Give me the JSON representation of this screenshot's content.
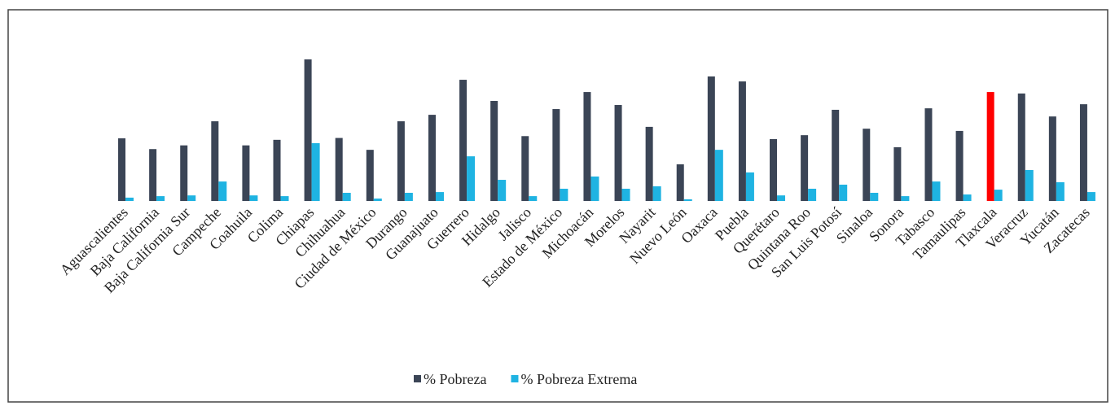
{
  "chart_data": {
    "type": "bar",
    "categories": [
      "Aguascalientes",
      "Baja California",
      "Baja California Sur",
      "Campeche",
      "Coahuila",
      "Colima",
      "Chiapas",
      "Chihuahua",
      "Ciudad de México",
      "Durango",
      "Guanajuato",
      "Guerrero",
      "Hidalgo",
      "Jalisco",
      "Estado de México",
      "Michoacán",
      "Morelos",
      "Nayarit",
      "Nuevo León",
      "Oaxaca",
      "Puebla",
      "Querétaro",
      "Quintana Roo",
      "San Luis Potosí",
      "Sinaloa",
      "Sonora",
      "Tabasco",
      "Tamaulipas",
      "Tlaxcala",
      "Veracruz",
      "Yucatán",
      "Zacatecas"
    ],
    "series": [
      {
        "name": "% Pobreza",
        "color": "#3b4556",
        "colors": [
          "#3b4556",
          "#3b4556",
          "#3b4556",
          "#3b4556",
          "#3b4556",
          "#3b4556",
          "#3b4556",
          "#3b4556",
          "#3b4556",
          "#3b4556",
          "#3b4556",
          "#3b4556",
          "#3b4556",
          "#3b4556",
          "#3b4556",
          "#3b4556",
          "#3b4556",
          "#3b4556",
          "#3b4556",
          "#3b4556",
          "#3b4556",
          "#3b4556",
          "#3b4556",
          "#3b4556",
          "#3b4556",
          "#3b4556",
          "#3b4556",
          "#3b4556",
          "#ff0000",
          "#3b4556",
          "#3b4556",
          "#3b4556"
        ],
        "values": [
          33.8,
          28,
          30,
          43,
          30,
          33,
          76.4,
          34,
          27.6,
          43,
          46.5,
          65.4,
          54,
          35,
          49.6,
          58.8,
          51.8,
          40,
          19.8,
          67.2,
          64.5,
          33.4,
          35.5,
          49.2,
          39,
          29,
          50,
          37.8,
          58.8,
          58,
          45.6,
          52.2
        ]
      },
      {
        "name": "% Pobreza Extrema",
        "color": "#1fb3e2",
        "values": [
          1.8,
          2.6,
          3,
          10.5,
          3,
          2.6,
          31.2,
          4.4,
          1.3,
          4.4,
          4.8,
          24.1,
          11.4,
          2.6,
          6.6,
          13.2,
          6.6,
          7.9,
          0.9,
          27.6,
          15.4,
          3,
          6.6,
          8.8,
          4.4,
          2.6,
          10.5,
          3.5,
          6.1,
          16.7,
          10.1,
          4.8
        ]
      }
    ],
    "legend": "bottom"
  }
}
